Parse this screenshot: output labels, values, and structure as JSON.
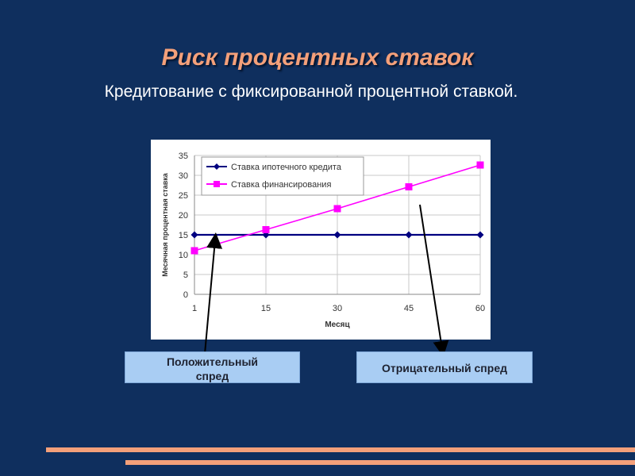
{
  "slide": {
    "title": "Риск процентных ставок",
    "subtitle": "Кредитование с фиксированной процентной ставкой."
  },
  "callouts": {
    "positive": [
      "Положительный",
      "спред"
    ],
    "negative": "Отрицательный спред"
  },
  "colors": {
    "background": "#0f2f5e",
    "title": "#f4a07a",
    "series_mortgage": "#000080",
    "series_funding": "#ff00ff",
    "callout_fill": "#a9cdf3"
  },
  "chart_data": {
    "type": "line",
    "title": "",
    "xlabel": "Месяц",
    "ylabel": "Месячная процентная ставка",
    "categories": [
      "1",
      "15",
      "30",
      "45",
      "60"
    ],
    "ylim": [
      0,
      35
    ],
    "yticks": [
      "0",
      "5",
      "10",
      "15",
      "20",
      "25",
      "30",
      "35"
    ],
    "grid": true,
    "legend_position": "top-left",
    "series": [
      {
        "name": "Ставка ипотечного кредита",
        "values": [
          15,
          15,
          15,
          15,
          15
        ],
        "marker": "diamond",
        "color": "#000080"
      },
      {
        "name": "Ставка финансирования",
        "values": [
          11,
          16.3,
          21.6,
          27.1,
          32.6
        ],
        "marker": "square",
        "color": "#ff00ff"
      }
    ]
  }
}
